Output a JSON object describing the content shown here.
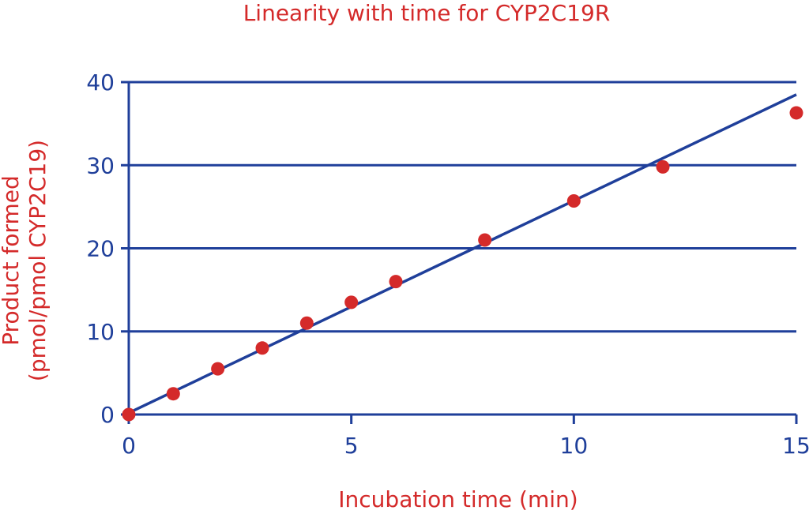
{
  "chart_data": {
    "type": "scatter",
    "title": "Linearity with time for CYP2C19R",
    "xlabel": "Incubation time (min)",
    "ylabel": [
      "Product formed",
      "(pmol/pmol CYP2C19)"
    ],
    "xlim": [
      0,
      15
    ],
    "ylim": [
      0,
      40
    ],
    "xticks": [
      0,
      5,
      10,
      15
    ],
    "yticks": [
      0,
      10,
      20,
      30,
      40
    ],
    "grid": true,
    "series": [
      {
        "points": [
          {
            "x": 0,
            "y": 0
          },
          {
            "x": 1,
            "y": 2.5
          },
          {
            "x": 2,
            "y": 5.5
          },
          {
            "x": 3,
            "y": 8
          },
          {
            "x": 4,
            "y": 11
          },
          {
            "x": 5,
            "y": 13.5
          },
          {
            "x": 6,
            "y": 16
          },
          {
            "x": 8,
            "y": 21
          },
          {
            "x": 10,
            "y": 25.7
          },
          {
            "x": 12,
            "y": 29.8
          },
          {
            "x": 15,
            "y": 36.3
          }
        ],
        "color": "#d42a2a"
      }
    ],
    "trendline": {
      "from": {
        "x": 0,
        "y": 0.2
      },
      "to": {
        "x": 15,
        "y": 38.5
      },
      "color": "#1f3f9a"
    },
    "colors": {
      "axis": "#1f3f9a",
      "grid": "#1f3f9a",
      "text_accent": "#d42a2a",
      "tick_text": "#1f3f9a"
    }
  }
}
